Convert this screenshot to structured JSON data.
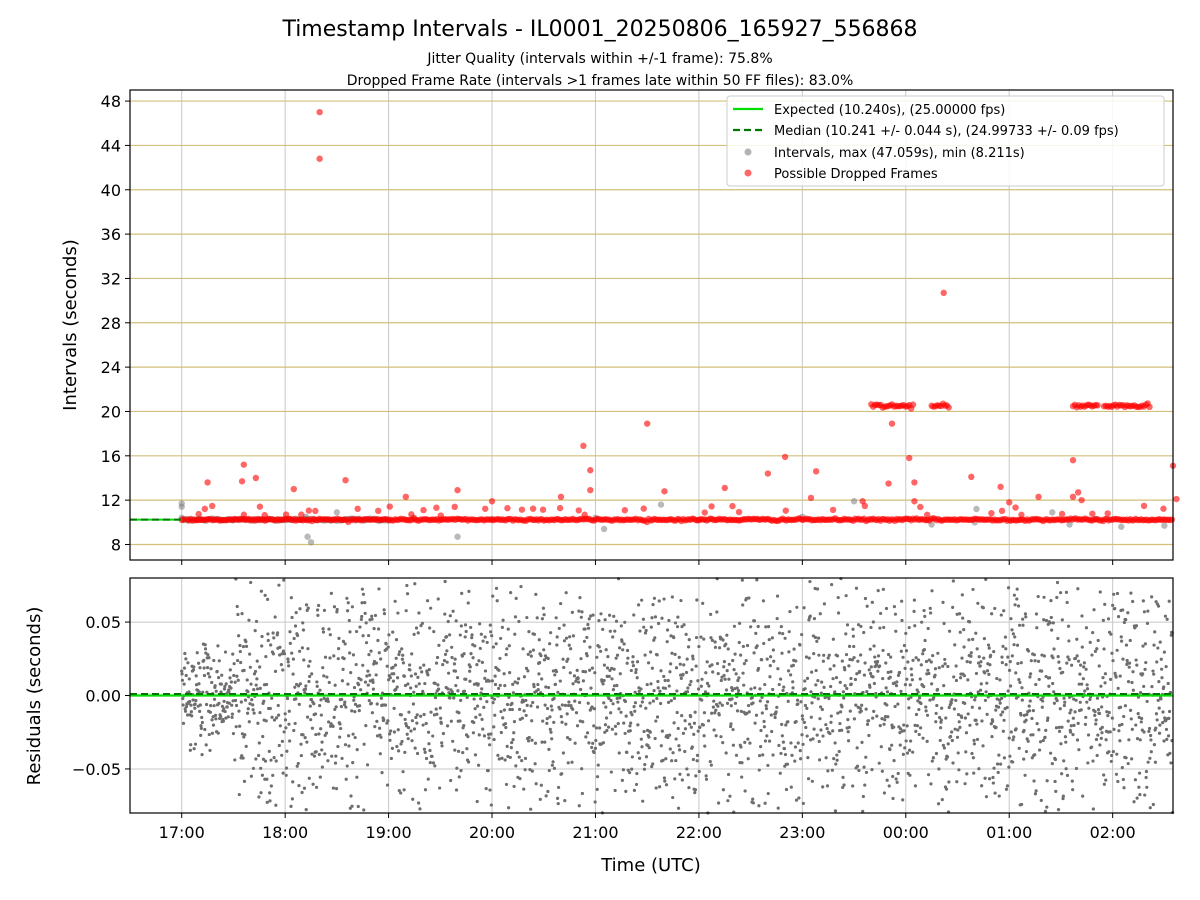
{
  "title": "Timestamp Intervals - IL0001_20250806_165927_556868",
  "subtitle1": "Jitter Quality (intervals within +/-1 frame): 75.8%",
  "subtitle2": "Dropped Frame Rate (intervals >1 frames late within 50 FF files): 83.0%",
  "colors": {
    "expected": "#00dd00",
    "median": "#007700",
    "intervals": "#808080",
    "dropped": "#ff0000",
    "hgrid_top": "#d2bf7a",
    "grid": "#c8c8c8"
  },
  "chart_data": [
    {
      "type": "scatter",
      "name": "intervals",
      "ylabel": "Intervals (seconds)",
      "xlabel": "",
      "x_range": [
        "16:30",
        "02:35"
      ],
      "ylim": [
        6.6,
        49.0
      ],
      "y_ticks": [
        8,
        12,
        16,
        20,
        24,
        28,
        32,
        36,
        40,
        44,
        48
      ],
      "grid": true,
      "legend_position": "top-right",
      "legend": [
        "Expected (10.240s), (25.00000 fps)",
        "Median (10.241 +/- 0.044 s), (24.99733 +/- 0.09 fps)",
        "Intervals, max (47.059s), min (8.211s)",
        "Possible Dropped Frames"
      ],
      "expected_interval": 10.24,
      "median_interval": 10.241,
      "series": [
        {
          "name": "Intervals",
          "points": [
            [
              "17:00",
              11.7
            ],
            [
              "17:00",
              11.4
            ],
            [
              "17:01",
              10.3
            ],
            [
              "17:30",
              10.2
            ],
            [
              "18:13",
              8.7
            ],
            [
              "18:15",
              8.2
            ],
            [
              "18:12",
              10.5
            ],
            [
              "18:30",
              10.9
            ],
            [
              "18:55",
              10.2
            ],
            [
              "19:15",
              10.4
            ],
            [
              "19:40",
              8.7
            ],
            [
              "20:00",
              10.3
            ],
            [
              "21:00",
              10.4
            ],
            [
              "21:05",
              9.4
            ],
            [
              "21:38",
              11.6
            ],
            [
              "22:00",
              10.2
            ],
            [
              "23:00",
              10.5
            ],
            [
              "23:30",
              11.9
            ],
            [
              "00:15",
              9.8
            ],
            [
              "00:40",
              10.0
            ],
            [
              "00:41",
              11.2
            ],
            [
              "01:25",
              10.9
            ],
            [
              "01:35",
              9.8
            ],
            [
              "01:50",
              10.3
            ],
            [
              "02:05",
              9.6
            ],
            [
              "02:30",
              9.7
            ]
          ]
        },
        {
          "name": "Possible Dropped Frames",
          "points": [
            [
              "18:20",
              47.0
            ],
            [
              "18:20",
              42.8
            ],
            [
              "00:22",
              30.7
            ],
            [
              "21:30",
              18.9
            ],
            [
              "20:53",
              16.9
            ],
            [
              "20:57",
              14.7
            ],
            [
              "20:57",
              12.9
            ],
            [
              "17:36",
              15.2
            ],
            [
              "17:35",
              13.7
            ],
            [
              "17:43",
              14.0
            ],
            [
              "17:15",
              13.6
            ],
            [
              "18:05",
              13.0
            ],
            [
              "18:35",
              13.8
            ],
            [
              "19:10",
              12.3
            ],
            [
              "19:40",
              12.9
            ],
            [
              "20:00",
              11.9
            ],
            [
              "20:40",
              12.3
            ],
            [
              "21:40",
              12.8
            ],
            [
              "22:15",
              13.1
            ],
            [
              "22:40",
              14.4
            ],
            [
              "22:50",
              15.9
            ],
            [
              "23:05",
              12.2
            ],
            [
              "23:08",
              14.6
            ],
            [
              "23:35",
              11.9
            ],
            [
              "23:50",
              13.5
            ],
            [
              "00:02",
              15.8
            ],
            [
              "00:05",
              13.6
            ],
            [
              "00:05",
              11.9
            ],
            [
              "23:52",
              18.9
            ],
            [
              "00:38",
              14.1
            ],
            [
              "00:55",
              13.2
            ],
            [
              "01:00",
              11.8
            ],
            [
              "01:17",
              12.3
            ],
            [
              "01:37",
              15.6
            ],
            [
              "01:37",
              12.3
            ],
            [
              "01:40",
              12.7
            ],
            [
              "01:42",
              12.0
            ],
            [
              "02:35",
              15.1
            ],
            [
              "02:37",
              12.1
            ]
          ]
        },
        {
          "name": "Possible Dropped Frames cluster 1",
          "x_from": "23:40",
          "x_to": "00:05",
          "y": 20.5
        },
        {
          "name": "Possible Dropped Frames cluster 2",
          "x_from": "00:15",
          "x_to": "00:25",
          "y": 20.5
        },
        {
          "name": "Possible Dropped Frames cluster 3",
          "x_from": "01:37",
          "x_to": "01:52",
          "y": 20.5
        },
        {
          "name": "Possible Dropped Frames cluster 4",
          "x_from": "01:55",
          "x_to": "02:22",
          "y": 20.5
        },
        {
          "name": "Possible Dropped Frames baseline",
          "x_from": "17:00",
          "x_to": "02:35",
          "y": 10.24
        }
      ]
    },
    {
      "type": "scatter",
      "name": "residuals",
      "ylabel": "Residuals (seconds)",
      "xlabel": "Time (UTC)",
      "x_range": [
        "16:30",
        "02:35"
      ],
      "ylim": [
        -0.08,
        0.08
      ],
      "y_ticks": [
        -0.05,
        0.0,
        0.05
      ],
      "y_tick_labels": [
        "−0.05",
        "0.00",
        "0.05"
      ],
      "x_ticks": [
        "17:00",
        "18:00",
        "19:00",
        "20:00",
        "21:00",
        "22:00",
        "23:00",
        "00:00",
        "01:00",
        "02:00"
      ],
      "grid": true,
      "expected_residual": 0.0,
      "median_residual": 0.001,
      "residual_spread_sd": 0.04
    }
  ]
}
